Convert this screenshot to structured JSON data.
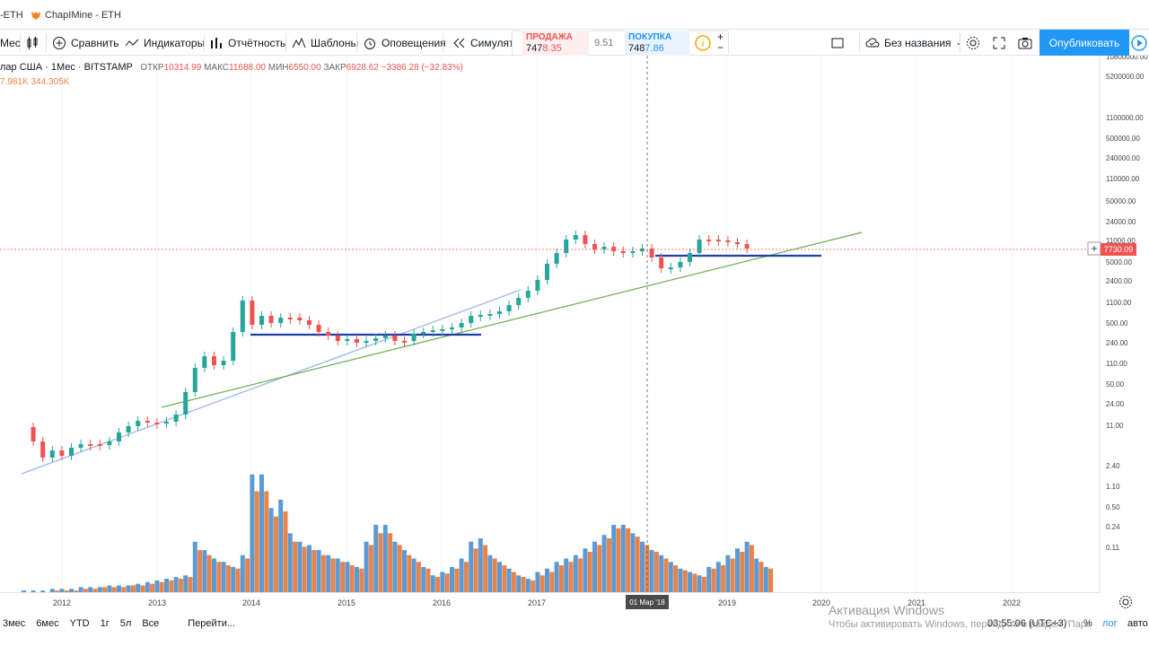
{
  "tabs": [
    {
      "label": "-ETH"
    },
    {
      "label": "ChapIMine - ETH"
    }
  ],
  "toolbar": {
    "interval": "Мес",
    "compare": "Сравнить",
    "indicators": "Индикаторы",
    "financials": "Отчётность",
    "templates": "Шаблоны",
    "alerts": "Оповещения",
    "replay": "Симулято",
    "sell_label": "ПРОДАЖА",
    "sell_price_a": "747",
    "sell_price_b": "8.35",
    "spread": "9.51",
    "buy_label": "ПОКУПКА",
    "buy_price_a": "748",
    "buy_price_b": "7.86",
    "layout_name": "Без названия",
    "publish": "Опубликовать"
  },
  "legend": {
    "symbol": "лар США · 1Мес · BITSTAMP",
    "o_label": "ОТКР",
    "o_value": "10314.99",
    "h_label": "МАКС",
    "h_value": "11688.00",
    "l_label": "МИН",
    "l_value": "6550.00",
    "c_label": "ЗАКР",
    "c_value": "6928.62",
    "change": "−3386.28 (−32.83%)",
    "vol_a": "7.981K",
    "vol_b": "344.305K"
  },
  "price_axis": {
    "ticks": [
      "10800000.00",
      "5200000.00",
      "1100000.00",
      "500000.00",
      "240000.00",
      "110000.00",
      "50000.00",
      "24000.00",
      "11000.00",
      "5000.00",
      "2400.00",
      "1100.00",
      "500.00",
      "240.00",
      "110.00",
      "50.00",
      "24.00",
      "11.00",
      "2.40",
      "1.10",
      "0.50",
      "0.24",
      "0.11"
    ],
    "current_price": "7730.09"
  },
  "time_axis": {
    "ticks": [
      "2012",
      "2013",
      "2014",
      "2015",
      "2016",
      "2017",
      "2019",
      "2020",
      "2021",
      "2022"
    ],
    "crosshair_label": "01 Мар '18"
  },
  "bottom": {
    "ranges": [
      "3мес",
      "6мес",
      "YTD",
      "1г",
      "5л",
      "Все"
    ],
    "goto": "Перейти...",
    "time": "03:55:06 (UTC+3)",
    "percent": "%",
    "log": "лог",
    "auto": "авто"
  },
  "watermark": {
    "line1": "Активация Windows",
    "line2": "Чтобы активировать Windows, перейдите в раздел \"Параметры\"."
  },
  "colors": {
    "up": "#26a69a",
    "down": "#ef5350",
    "vol_up": "#5b9bd5",
    "vol_down": "#e8834a",
    "accent": "#2196f3"
  },
  "chart_data": {
    "type": "candlestick",
    "title": "",
    "scale": "log",
    "volume_up": [
      1,
      1,
      1,
      2,
      2,
      2,
      3,
      3,
      3,
      4,
      4,
      4,
      5,
      6,
      7,
      8,
      9,
      10,
      30,
      25,
      20,
      18,
      15,
      22,
      70,
      70,
      50,
      55,
      35,
      30,
      28,
      25,
      22,
      20,
      18,
      15,
      30,
      40,
      40,
      30,
      25,
      20,
      15,
      10,
      12,
      15,
      20,
      30,
      32,
      22,
      18,
      14,
      10,
      8,
      12,
      14,
      18,
      20,
      22,
      26,
      30,
      34,
      40,
      40,
      35,
      30,
      25,
      22,
      18,
      14,
      12,
      10,
      15,
      18,
      22,
      26,
      30,
      20,
      15
    ],
    "volume_down": [
      0,
      0,
      0,
      1,
      1,
      1,
      2,
      2,
      3,
      3,
      3,
      4,
      4,
      5,
      6,
      7,
      8,
      9,
      25,
      22,
      18,
      16,
      14,
      20,
      60,
      60,
      45,
      48,
      30,
      27,
      25,
      22,
      20,
      18,
      16,
      14,
      28,
      35,
      35,
      28,
      22,
      18,
      14,
      9,
      11,
      14,
      18,
      26,
      28,
      20,
      16,
      12,
      9,
      7,
      10,
      12,
      16,
      18,
      20,
      24,
      28,
      32,
      38,
      38,
      33,
      28,
      24,
      20,
      16,
      13,
      11,
      9,
      14,
      16,
      20,
      24,
      28,
      18,
      14
    ]
  }
}
